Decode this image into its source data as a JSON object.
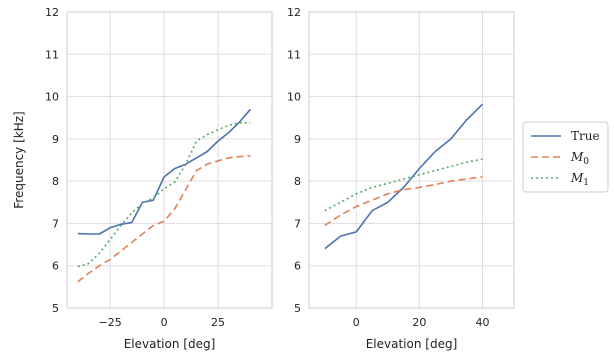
{
  "colors": {
    "true": "#4c72b0",
    "m0": "#dd8452",
    "m1": "#55a868",
    "grid": "#dddddd",
    "frame": "#cccccc"
  },
  "legend": {
    "entries": [
      {
        "label": "True",
        "color": "#4c72b0",
        "dash": "solid"
      },
      {
        "label": "M",
        "sub": "0",
        "color": "#dd8452",
        "dash": "dashed"
      },
      {
        "label": "M",
        "sub": "1",
        "color": "#55a868",
        "dash": "dotted"
      }
    ]
  },
  "chart_data": [
    {
      "type": "line",
      "xlabel": "Elevation [deg]",
      "ylabel": "Frequency [kHz]",
      "xlim": [
        -45,
        50
      ],
      "ylim": [
        5,
        12
      ],
      "xticks": [
        -25,
        0,
        25
      ],
      "yticks": [
        5,
        6,
        7,
        8,
        9,
        10,
        11,
        12
      ],
      "grid": true,
      "series": [
        {
          "name": "True",
          "x": [
            -40,
            -35,
            -30,
            -25,
            -20,
            -15,
            -10,
            -5,
            0,
            5,
            10,
            15,
            20,
            25,
            30,
            35,
            40,
            45
          ],
          "y": [
            6.76,
            6.75,
            6.75,
            6.9,
            6.98,
            7.02,
            7.5,
            7.55,
            8.1,
            8.3,
            8.4,
            8.55,
            8.7,
            8.95,
            9.15,
            9.4,
            9.7,
            null
          ]
        },
        {
          "name": "M0",
          "x": [
            -40,
            -35,
            -30,
            -25,
            -20,
            -15,
            -10,
            -5,
            0,
            5,
            10,
            15,
            20,
            25,
            30,
            35,
            40,
            45
          ],
          "y": [
            5.62,
            5.82,
            6.0,
            6.15,
            6.35,
            6.55,
            6.75,
            6.95,
            7.05,
            7.35,
            7.8,
            8.25,
            8.4,
            8.48,
            8.55,
            8.58,
            8.6,
            null
          ]
        },
        {
          "name": "M1",
          "x": [
            -40,
            -35,
            -30,
            -25,
            -20,
            -15,
            -10,
            -5,
            0,
            5,
            10,
            15,
            20,
            25,
            30,
            35,
            40,
            45
          ],
          "y": [
            5.98,
            6.05,
            6.3,
            6.62,
            6.95,
            7.25,
            7.48,
            7.6,
            7.82,
            7.98,
            8.4,
            8.95,
            9.1,
            9.22,
            9.32,
            9.38,
            9.38,
            null
          ]
        }
      ]
    },
    {
      "type": "line",
      "xlabel": "Elevation [deg]",
      "ylabel": "",
      "xlim": [
        -15,
        50
      ],
      "ylim": [
        5,
        12
      ],
      "xticks": [
        0,
        20,
        40
      ],
      "yticks": [
        5,
        6,
        7,
        8,
        9,
        10,
        11,
        12
      ],
      "grid": true,
      "series": [
        {
          "name": "True",
          "x": [
            -10,
            -5,
            0,
            5,
            10,
            15,
            20,
            25,
            30,
            35,
            40,
            45
          ],
          "y": [
            6.4,
            6.7,
            6.8,
            7.3,
            7.5,
            7.85,
            8.3,
            8.7,
            9.0,
            9.45,
            9.82,
            null
          ]
        },
        {
          "name": "M0",
          "x": [
            -10,
            -5,
            0,
            5,
            10,
            15,
            20,
            25,
            30,
            35,
            40,
            45
          ],
          "y": [
            6.95,
            7.2,
            7.4,
            7.55,
            7.7,
            7.8,
            7.85,
            7.92,
            8.0,
            8.05,
            8.1,
            null
          ]
        },
        {
          "name": "M1",
          "x": [
            -10,
            -5,
            0,
            5,
            10,
            15,
            20,
            25,
            30,
            35,
            40,
            45
          ],
          "y": [
            7.3,
            7.5,
            7.7,
            7.85,
            7.95,
            8.05,
            8.15,
            8.25,
            8.35,
            8.45,
            8.52,
            null
          ]
        }
      ]
    }
  ]
}
